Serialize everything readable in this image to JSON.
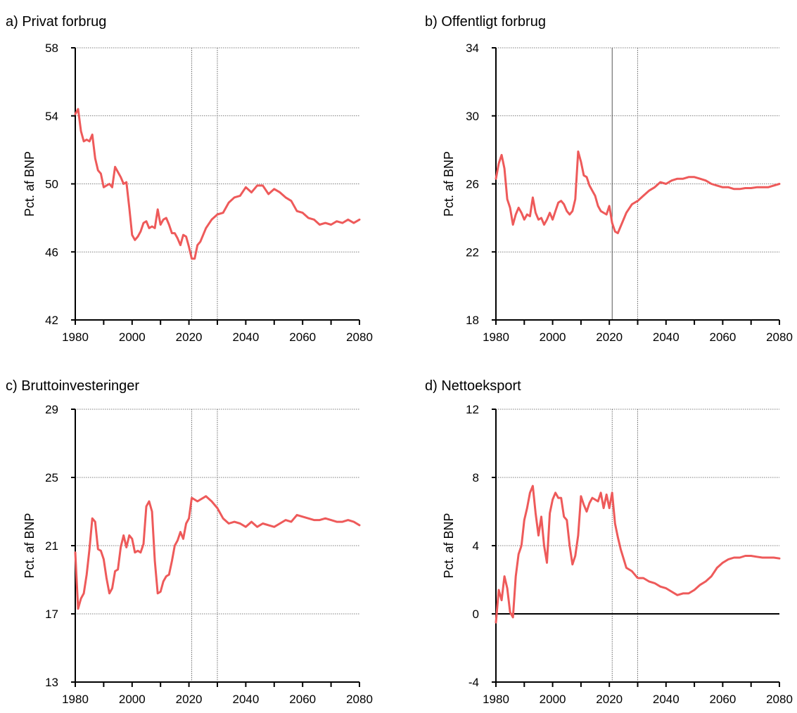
{
  "chart_data": [
    {
      "type": "line",
      "title": "a) Privat forbrug",
      "ylabel": "Pct. af BNP",
      "xlim": [
        1980,
        2080
      ],
      "ylim": [
        42,
        58
      ],
      "yticks": [
        42,
        46,
        50,
        54,
        58
      ],
      "xticks": [
        1980,
        2000,
        2020,
        2040,
        2060,
        2080
      ],
      "xtick_labels": [
        "1980",
        "2000",
        "2020",
        "2040",
        "2060",
        "2080"
      ],
      "ytick_labels": [
        "42",
        "46",
        "50",
        "54",
        "58"
      ],
      "ref_lines": [
        {
          "x": 2021,
          "style": "dotted"
        },
        {
          "x": 2030,
          "style": "dotted"
        }
      ],
      "grid": "horizontal dotted",
      "series": [
        {
          "color": "#ee5a5a",
          "x": [
            1980,
            1981,
            1982,
            1983,
            1984,
            1985,
            1986,
            1987,
            1988,
            1989,
            1990,
            1991,
            1992,
            1993,
            1994,
            1995,
            1996,
            1997,
            1998,
            1999,
            2000,
            2001,
            2002,
            2003,
            2004,
            2005,
            2006,
            2007,
            2008,
            2009,
            2010,
            2011,
            2012,
            2013,
            2014,
            2015,
            2016,
            2017,
            2018,
            2019,
            2020,
            2021,
            2022,
            2023,
            2024,
            2026,
            2028,
            2030,
            2032,
            2034,
            2036,
            2038,
            2040,
            2042,
            2044,
            2046,
            2048,
            2050,
            2052,
            2054,
            2056,
            2058,
            2060,
            2062,
            2064,
            2066,
            2068,
            2070,
            2072,
            2074,
            2076,
            2078,
            2080
          ],
          "y": [
            54.1,
            54.4,
            53.1,
            52.5,
            52.6,
            52.5,
            52.9,
            51.5,
            50.8,
            50.6,
            49.8,
            49.9,
            50.0,
            49.8,
            51.0,
            50.7,
            50.4,
            50.0,
            50.1,
            48.6,
            47.0,
            46.7,
            46.9,
            47.2,
            47.7,
            47.8,
            47.4,
            47.5,
            47.4,
            48.5,
            47.6,
            47.9,
            48.0,
            47.6,
            47.1,
            47.1,
            46.8,
            46.4,
            47.0,
            46.9,
            46.3,
            45.6,
            45.6,
            46.4,
            46.6,
            47.4,
            47.9,
            48.2,
            48.3,
            48.9,
            49.2,
            49.3,
            49.8,
            49.5,
            49.9,
            49.9,
            49.4,
            49.7,
            49.5,
            49.2,
            49.0,
            48.4,
            48.3,
            48.0,
            47.9,
            47.6,
            47.7,
            47.6,
            47.8,
            47.7,
            47.9,
            47.7,
            47.9
          ]
        }
      ]
    },
    {
      "type": "line",
      "title": "b) Offentligt forbrug",
      "ylabel": "Pct. af BNP",
      "xlim": [
        1980,
        2080
      ],
      "ylim": [
        18,
        34
      ],
      "yticks": [
        18,
        22,
        26,
        30,
        34
      ],
      "xticks": [
        1980,
        2000,
        2020,
        2040,
        2060,
        2080
      ],
      "xtick_labels": [
        "1980",
        "2000",
        "2020",
        "2040",
        "2060",
        "2080"
      ],
      "ytick_labels": [
        "18",
        "22",
        "26",
        "30",
        "34"
      ],
      "ref_lines": [
        {
          "x": 2021,
          "style": "solid"
        },
        {
          "x": 2030,
          "style": "dotted"
        }
      ],
      "grid": "horizontal dotted",
      "series": [
        {
          "color": "#ee5a5a",
          "x": [
            1980,
            1981,
            1982,
            1983,
            1984,
            1985,
            1986,
            1987,
            1988,
            1989,
            1990,
            1991,
            1992,
            1993,
            1994,
            1995,
            1996,
            1997,
            1998,
            1999,
            2000,
            2001,
            2002,
            2003,
            2004,
            2005,
            2006,
            2007,
            2008,
            2009,
            2010,
            2011,
            2012,
            2013,
            2014,
            2015,
            2016,
            2017,
            2018,
            2019,
            2020,
            2021,
            2022,
            2023,
            2024,
            2026,
            2028,
            2030,
            2032,
            2034,
            2036,
            2038,
            2040,
            2042,
            2044,
            2046,
            2048,
            2050,
            2052,
            2054,
            2056,
            2058,
            2060,
            2062,
            2064,
            2066,
            2068,
            2070,
            2072,
            2074,
            2076,
            2078,
            2080
          ],
          "y": [
            26.3,
            27.2,
            27.7,
            26.9,
            25.1,
            24.6,
            23.6,
            24.2,
            24.6,
            24.3,
            23.9,
            24.2,
            24.1,
            25.2,
            24.3,
            23.9,
            24.0,
            23.6,
            23.9,
            24.3,
            23.9,
            24.4,
            24.9,
            25.0,
            24.8,
            24.4,
            24.2,
            24.4,
            25.1,
            27.9,
            27.3,
            26.5,
            26.4,
            25.9,
            25.6,
            25.3,
            24.7,
            24.4,
            24.3,
            24.2,
            24.7,
            23.7,
            23.2,
            23.1,
            23.5,
            24.3,
            24.8,
            25.0,
            25.3,
            25.6,
            25.8,
            26.1,
            26.0,
            26.2,
            26.3,
            26.3,
            26.4,
            26.4,
            26.3,
            26.2,
            26.0,
            25.9,
            25.8,
            25.8,
            25.7,
            25.7,
            25.75,
            25.75,
            25.8,
            25.8,
            25.8,
            25.9,
            26.0
          ]
        }
      ]
    },
    {
      "type": "line",
      "title": "c) Bruttoinvesteringer",
      "ylabel": "Pct. af BNP",
      "xlim": [
        1980,
        2080
      ],
      "ylim": [
        13,
        29
      ],
      "yticks": [
        13,
        17,
        21,
        25,
        29
      ],
      "xticks": [
        1980,
        2000,
        2020,
        2040,
        2060,
        2080
      ],
      "xtick_labels": [
        "1980",
        "2000",
        "2020",
        "2040",
        "2060",
        "2080"
      ],
      "ytick_labels": [
        "13",
        "17",
        "21",
        "25",
        "29"
      ],
      "ref_lines": [
        {
          "x": 2021,
          "style": "dotted"
        },
        {
          "x": 2030,
          "style": "dotted"
        }
      ],
      "grid": "horizontal dotted",
      "series": [
        {
          "color": "#ee5a5a",
          "x": [
            1980,
            1981,
            1982,
            1983,
            1984,
            1985,
            1986,
            1987,
            1988,
            1989,
            1990,
            1991,
            1992,
            1993,
            1994,
            1995,
            1996,
            1997,
            1998,
            1999,
            2000,
            2001,
            2002,
            2003,
            2004,
            2005,
            2006,
            2007,
            2008,
            2009,
            2010,
            2011,
            2012,
            2013,
            2014,
            2015,
            2016,
            2017,
            2018,
            2019,
            2020,
            2021,
            2022,
            2023,
            2024,
            2026,
            2028,
            2030,
            2032,
            2034,
            2036,
            2038,
            2040,
            2042,
            2044,
            2046,
            2048,
            2050,
            2052,
            2054,
            2056,
            2058,
            2060,
            2062,
            2064,
            2066,
            2068,
            2070,
            2072,
            2074,
            2076,
            2078,
            2080
          ],
          "y": [
            20.6,
            17.3,
            17.9,
            18.2,
            19.3,
            20.8,
            22.6,
            22.4,
            20.8,
            20.7,
            20.2,
            19.1,
            18.2,
            18.5,
            19.5,
            19.6,
            20.9,
            21.6,
            20.9,
            21.6,
            21.4,
            20.6,
            20.7,
            20.6,
            21.1,
            23.3,
            23.6,
            23.0,
            20.1,
            18.2,
            18.3,
            18.9,
            19.2,
            19.3,
            20.1,
            21.0,
            21.3,
            21.8,
            21.4,
            22.3,
            22.6,
            23.8,
            23.7,
            23.6,
            23.7,
            23.9,
            23.6,
            23.2,
            22.6,
            22.3,
            22.4,
            22.3,
            22.1,
            22.4,
            22.1,
            22.3,
            22.2,
            22.1,
            22.3,
            22.5,
            22.4,
            22.8,
            22.7,
            22.6,
            22.5,
            22.5,
            22.6,
            22.5,
            22.4,
            22.4,
            22.5,
            22.4,
            22.2
          ]
        }
      ]
    },
    {
      "type": "line",
      "title": "d) Nettoeksport",
      "ylabel": "Pct. af BNP",
      "xlim": [
        1980,
        2080
      ],
      "ylim": [
        -4,
        12
      ],
      "yticks": [
        -4,
        0,
        4,
        8,
        12
      ],
      "xticks": [
        1980,
        2000,
        2020,
        2040,
        2060,
        2080
      ],
      "xtick_labels": [
        "1980",
        "2000",
        "2020",
        "2040",
        "2060",
        "2080"
      ],
      "ytick_labels": [
        "-4",
        "0",
        "4",
        "8",
        "12"
      ],
      "ref_lines": [
        {
          "x": 2021,
          "style": "dotted"
        },
        {
          "x": 2030,
          "style": "dotted"
        }
      ],
      "zero_line": 0,
      "grid": "horizontal dotted",
      "series": [
        {
          "color": "#ee5a5a",
          "x": [
            1980,
            1981,
            1982,
            1983,
            1984,
            1985,
            1986,
            1987,
            1988,
            1989,
            1990,
            1991,
            1992,
            1993,
            1994,
            1995,
            1996,
            1997,
            1998,
            1999,
            2000,
            2001,
            2002,
            2003,
            2004,
            2005,
            2006,
            2007,
            2008,
            2009,
            2010,
            2011,
            2012,
            2013,
            2014,
            2015,
            2016,
            2017,
            2018,
            2019,
            2020,
            2021,
            2022,
            2023,
            2024,
            2026,
            2028,
            2030,
            2032,
            2034,
            2036,
            2038,
            2040,
            2042,
            2044,
            2046,
            2048,
            2050,
            2052,
            2054,
            2056,
            2058,
            2060,
            2062,
            2064,
            2066,
            2068,
            2070,
            2072,
            2074,
            2076,
            2078,
            2080
          ],
          "y": [
            -0.5,
            1.4,
            0.8,
            2.2,
            1.5,
            0.1,
            -0.2,
            2.2,
            3.5,
            4.0,
            5.5,
            6.2,
            7.1,
            7.5,
            5.9,
            4.6,
            5.7,
            4.0,
            3.0,
            5.9,
            6.7,
            7.1,
            6.8,
            6.8,
            5.7,
            5.5,
            4.0,
            2.9,
            3.4,
            4.6,
            6.9,
            6.4,
            6.0,
            6.5,
            6.8,
            6.7,
            6.6,
            7.1,
            6.2,
            7.0,
            6.2,
            7.1,
            5.3,
            4.5,
            3.8,
            2.7,
            2.5,
            2.1,
            2.1,
            1.9,
            1.8,
            1.6,
            1.5,
            1.3,
            1.1,
            1.2,
            1.2,
            1.4,
            1.7,
            1.9,
            2.2,
            2.7,
            3.0,
            3.2,
            3.3,
            3.3,
            3.4,
            3.4,
            3.35,
            3.3,
            3.3,
            3.3,
            3.25
          ]
        }
      ]
    }
  ]
}
